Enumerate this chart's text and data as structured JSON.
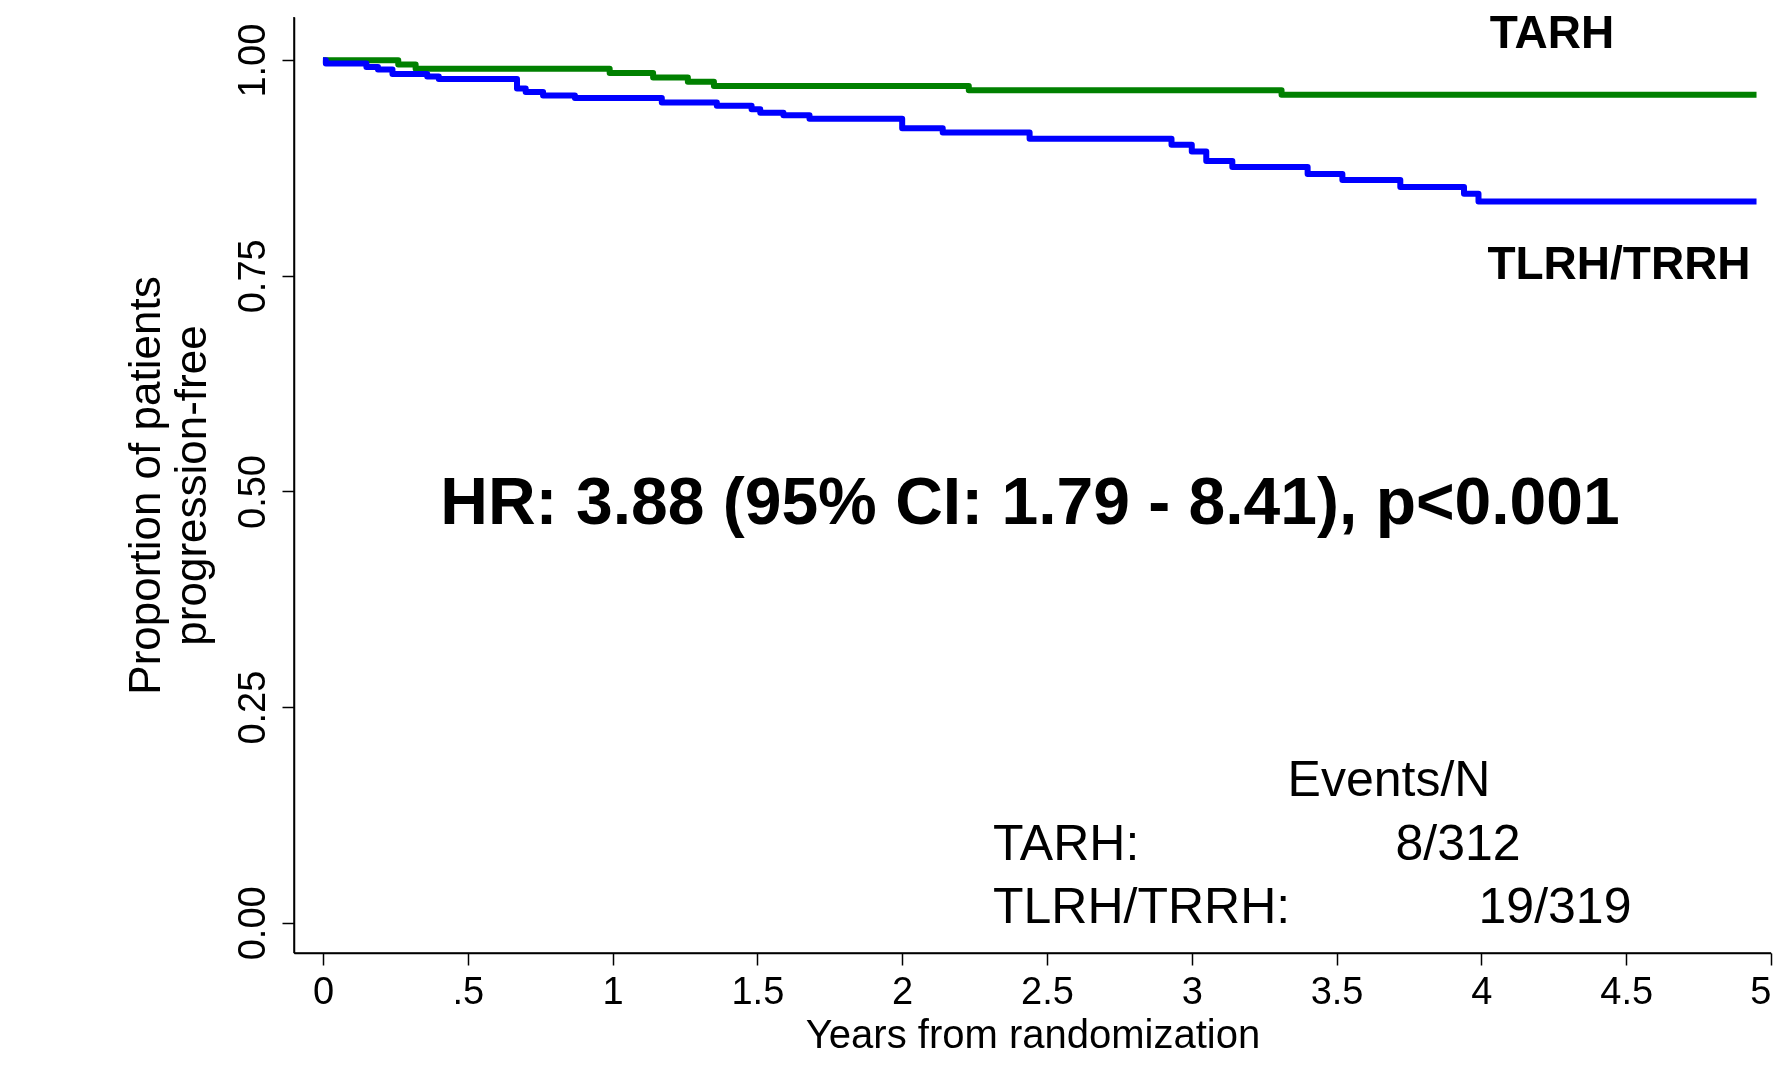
{
  "chart_data": {
    "type": "step",
    "xlabel": "Years from randomization",
    "ylabel": "Proportion of patients\nprogression-free",
    "xlim": [
      -0.1,
      5
    ],
    "ylim": [
      -0.035,
      1.05
    ],
    "xticks": [
      0,
      {
        "value": 0.5,
        "label": ".5"
      },
      1,
      1.5,
      2,
      2.5,
      3,
      3.5,
      4,
      4.5,
      5
    ],
    "yticks": [
      {
        "value": 0,
        "label": "0.00"
      },
      {
        "value": 0.25,
        "label": "0.25"
      },
      {
        "value": 0.5,
        "label": "0.50"
      },
      {
        "value": 0.75,
        "label": "0.75"
      },
      {
        "value": 1,
        "label": "1.00"
      }
    ],
    "grid": false,
    "line_style": "solid",
    "marker": "none",
    "series": [
      {
        "name": "TARH",
        "color": "#008000",
        "x": [
          0,
          0.26,
          0.32,
          0.99,
          1.14,
          1.26,
          1.35,
          2.23,
          3.31,
          4.95
        ],
        "values": [
          1.0,
          0.995,
          0.99,
          0.985,
          0.98,
          0.975,
          0.97,
          0.965,
          0.96,
          0.96
        ]
      },
      {
        "name": "TLRH/TRRH",
        "color": "#0000ff",
        "x": [
          0,
          0.01,
          0.15,
          0.19,
          0.24,
          0.36,
          0.4,
          0.67,
          0.7,
          0.76,
          0.87,
          1.17,
          1.36,
          1.48,
          1.51,
          1.59,
          1.68,
          2.0,
          2.14,
          2.44,
          2.93,
          3.0,
          3.05,
          3.14,
          3.4,
          3.52,
          3.72,
          3.94,
          3.99,
          4.95
        ],
        "values": [
          1.0,
          0.996,
          0.992,
          0.989,
          0.984,
          0.981,
          0.978,
          0.967,
          0.963,
          0.959,
          0.956,
          0.951,
          0.947,
          0.943,
          0.939,
          0.936,
          0.932,
          0.921,
          0.916,
          0.909,
          0.902,
          0.894,
          0.883,
          0.876,
          0.868,
          0.861,
          0.853,
          0.845,
          0.836,
          0.836
        ]
      }
    ],
    "annotations": [
      "HR: 3.88 (95% CI: 1.79 - 8.41), p<0.001",
      "Events/N",
      "TARH:",
      "8/312",
      "TLRH/TRRH:",
      "19/319"
    ]
  }
}
